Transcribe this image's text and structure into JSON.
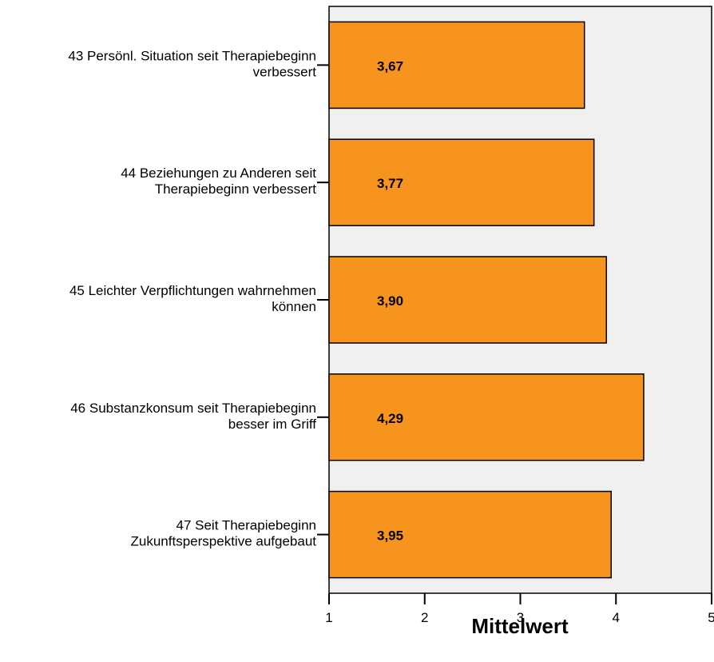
{
  "chart_data": {
    "type": "bar",
    "orientation": "horizontal",
    "title": "",
    "xlabel": "Mittelwert",
    "xlim": [
      1,
      5
    ],
    "xticks": [
      "1",
      "2",
      "3",
      "4",
      "5"
    ],
    "categories": [
      [
        "43 Persönl. Situation seit Therapiebeginn",
        "verbessert"
      ],
      [
        "44 Beziehungen zu Anderen seit",
        "Therapiebeginn verbessert"
      ],
      [
        "45 Leichter Verpflichtungen wahrnehmen",
        "können"
      ],
      [
        "46 Substanzkonsum seit Therapiebeginn",
        "besser im Griff"
      ],
      [
        "47 Seit Therapiebeginn",
        "Zukunftsperspektive aufgebaut"
      ]
    ],
    "values": [
      3.67,
      3.77,
      3.9,
      4.29,
      3.95
    ],
    "data_labels": [
      "3,67",
      "3,77",
      "3,90",
      "4,29",
      "3,95"
    ],
    "colors": {
      "bar": "#f7941d",
      "plot_background": "#f0f0f0",
      "outline": "#000000"
    }
  }
}
